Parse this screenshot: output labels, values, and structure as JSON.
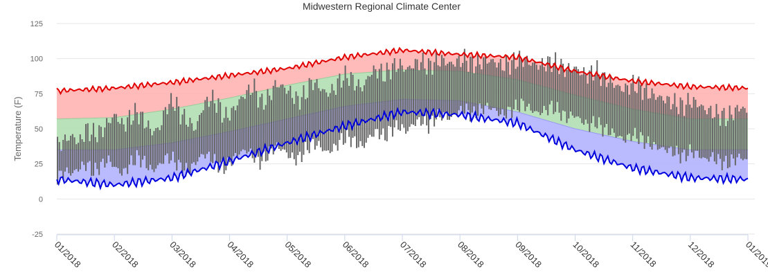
{
  "chart_data": {
    "type": "line",
    "title": "Midwestern Regional Climate Center",
    "ylabel": "Temperature (F)",
    "xlabel": "",
    "ylim": [
      -25,
      125
    ],
    "yticks": [
      "125",
      "100",
      "75",
      "50",
      "25",
      "0",
      "-25"
    ],
    "ytick_values": [
      125,
      100,
      75,
      50,
      25,
      0,
      -25
    ],
    "xticks": [
      "01/2018",
      "02/2018",
      "03/2018",
      "04/2018",
      "05/2018",
      "06/2018",
      "07/2018",
      "08/2018",
      "09/2018",
      "10/2018",
      "11/2018",
      "12/2018",
      "01/2019"
    ],
    "grid": "horizontal",
    "colors": {
      "record_high_line": "#e00000",
      "record_low_line": "#0000dd",
      "record_high_band": "#ffb3b3",
      "normal_band": "#b3dfb3",
      "record_low_band": "#b3b3ff",
      "observed_bars": "#666666",
      "normal_low_line": "#9999ee",
      "normal_high_line": "#99cc99"
    },
    "series": [
      {
        "monthly_points": [
          "01/2018",
          "02/2018",
          "03/2018",
          "04/2018",
          "05/2018",
          "06/2018",
          "07/2018",
          "08/2018",
          "09/2018",
          "10/2018",
          "11/2018",
          "12/2018",
          "01/2019"
        ],
        "record_high": [
          77,
          79,
          83,
          88,
          93,
          101,
          106,
          103,
          101,
          91,
          84,
          80,
          79
        ],
        "normal_high": [
          57,
          58,
          64,
          72,
          81,
          89,
          92,
          91,
          85,
          74,
          64,
          57,
          57
        ],
        "normal_low": [
          35,
          35,
          40,
          48,
          57,
          66,
          71,
          70,
          62,
          50,
          41,
          35,
          35
        ],
        "record_low": [
          14,
          10,
          15,
          27,
          40,
          52,
          62,
          60,
          54,
          35,
          22,
          15,
          14
        ]
      }
    ],
    "observed_daily_ranges": {
      "start": "2018-01-01",
      "end": "2018-12-31",
      "pairs": [
        [
          15,
          38
        ],
        [
          20,
          42
        ],
        [
          18,
          45
        ],
        [
          22,
          40
        ],
        [
          25,
          50
        ],
        [
          19,
          46
        ],
        [
          24,
          48
        ],
        [
          28,
          55
        ],
        [
          22,
          60
        ],
        [
          18,
          52
        ],
        [
          25,
          58
        ],
        [
          30,
          62
        ],
        [
          26,
          55
        ],
        [
          20,
          48
        ],
        [
          24,
          50
        ],
        [
          30,
          66
        ],
        [
          28,
          70
        ],
        [
          22,
          60
        ],
        [
          20,
          55
        ],
        [
          26,
          50
        ],
        [
          32,
          66
        ],
        [
          30,
          72
        ],
        [
          25,
          68
        ],
        [
          22,
          58
        ],
        [
          28,
          62
        ],
        [
          33,
          70
        ],
        [
          35,
          76
        ],
        [
          30,
          80
        ],
        [
          26,
          68
        ],
        [
          32,
          72
        ],
        [
          38,
          82
        ],
        [
          35,
          80
        ],
        [
          30,
          76
        ],
        [
          28,
          70
        ],
        [
          34,
          74
        ],
        [
          40,
          84
        ],
        [
          38,
          80
        ],
        [
          33,
          75
        ],
        [
          36,
          78
        ],
        [
          42,
          86
        ],
        [
          44,
          88
        ],
        [
          40,
          82
        ],
        [
          37,
          79
        ],
        [
          45,
          90
        ],
        [
          48,
          92
        ],
        [
          44,
          88
        ],
        [
          50,
          94
        ],
        [
          52,
          96
        ],
        [
          48,
          92
        ],
        [
          54,
          96
        ],
        [
          56,
          98
        ],
        [
          52,
          94
        ],
        [
          58,
          98
        ],
        [
          60,
          99
        ],
        [
          57,
          96
        ],
        [
          62,
          98
        ],
        [
          64,
          100
        ],
        [
          60,
          96
        ],
        [
          63,
          97
        ],
        [
          66,
          99
        ],
        [
          64,
          98
        ],
        [
          60,
          95
        ],
        [
          62,
          96
        ],
        [
          65,
          98
        ],
        [
          68,
          100
        ],
        [
          64,
          97
        ],
        [
          61,
          95
        ],
        [
          63,
          96
        ],
        [
          66,
          98
        ],
        [
          62,
          95
        ],
        [
          58,
          92
        ],
        [
          60,
          94
        ],
        [
          56,
          90
        ],
        [
          52,
          88
        ],
        [
          55,
          92
        ],
        [
          50,
          86
        ],
        [
          48,
          84
        ],
        [
          45,
          80
        ],
        [
          42,
          78
        ],
        [
          46,
          82
        ],
        [
          44,
          80
        ],
        [
          40,
          76
        ],
        [
          38,
          74
        ],
        [
          36,
          72
        ],
        [
          35,
          70
        ],
        [
          33,
          68
        ],
        [
          30,
          66
        ],
        [
          34,
          70
        ],
        [
          32,
          68
        ],
        [
          28,
          64
        ],
        [
          30,
          62
        ],
        [
          27,
          60
        ],
        [
          25,
          58
        ],
        [
          28,
          62
        ],
        [
          30,
          66
        ],
        [
          26,
          60
        ]
      ]
    }
  }
}
